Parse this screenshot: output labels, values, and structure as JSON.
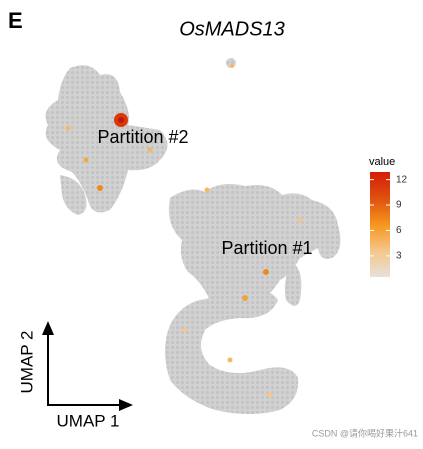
{
  "panel_label": "E",
  "chart_data": {
    "type": "umap",
    "title": "OsMADS13",
    "annotations": [
      "Partition #2",
      "Partition #1"
    ],
    "xlabel": "UMAP 1",
    "ylabel": "UMAP 2",
    "colorbar": {
      "label": "value",
      "lim": [
        0.5,
        12.9
      ],
      "ticks": [
        3,
        6,
        9,
        12
      ],
      "colors": [
        "#e6e0da",
        "#f6c68a",
        "#f4961e",
        "#e05010",
        "#d41e08"
      ]
    }
  },
  "watermark": "CSDN @请你喝好果汁641"
}
